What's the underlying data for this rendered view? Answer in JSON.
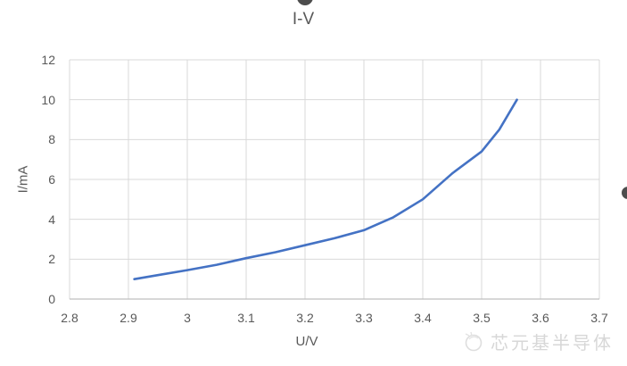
{
  "page": {
    "title": "I-V"
  },
  "chart_data": {
    "type": "line",
    "title": "I-V",
    "xlabel": "U/V",
    "ylabel": "I/mA",
    "xlim": [
      2.8,
      3.7
    ],
    "ylim": [
      0,
      12
    ],
    "x_tick_labels": [
      "2.8",
      "2.9",
      "3",
      "3.1",
      "3.2",
      "3.3",
      "3.4",
      "3.5",
      "3.6",
      "3.7"
    ],
    "x_tick_values": [
      2.8,
      2.9,
      3.0,
      3.1,
      3.2,
      3.3,
      3.4,
      3.5,
      3.6,
      3.7
    ],
    "y_tick_labels": [
      "0",
      "2",
      "4",
      "6",
      "8",
      "10",
      "12"
    ],
    "y_tick_values": [
      0,
      2,
      4,
      6,
      8,
      10,
      12
    ],
    "grid": true,
    "legend_position": "none",
    "series": [
      {
        "name": "I-V",
        "color": "#4472C4",
        "points": [
          [
            2.91,
            1.0
          ],
          [
            2.95,
            1.2
          ],
          [
            3.0,
            1.45
          ],
          [
            3.05,
            1.72
          ],
          [
            3.1,
            2.05
          ],
          [
            3.15,
            2.35
          ],
          [
            3.2,
            2.7
          ],
          [
            3.25,
            3.05
          ],
          [
            3.3,
            3.45
          ],
          [
            3.35,
            4.1
          ],
          [
            3.4,
            5.0
          ],
          [
            3.45,
            6.3
          ],
          [
            3.5,
            7.4
          ],
          [
            3.53,
            8.5
          ],
          [
            3.56,
            10.0
          ]
        ]
      }
    ]
  },
  "colors": {
    "curve": "#4472C4",
    "grid": "#D9D9D9",
    "axis_line": "#BFBFBF",
    "label_text": "#595959",
    "watermark_text": "#D7D7D7"
  },
  "watermark": {
    "logo": "circular-swirl-logo",
    "text": "芯元基半导体"
  }
}
